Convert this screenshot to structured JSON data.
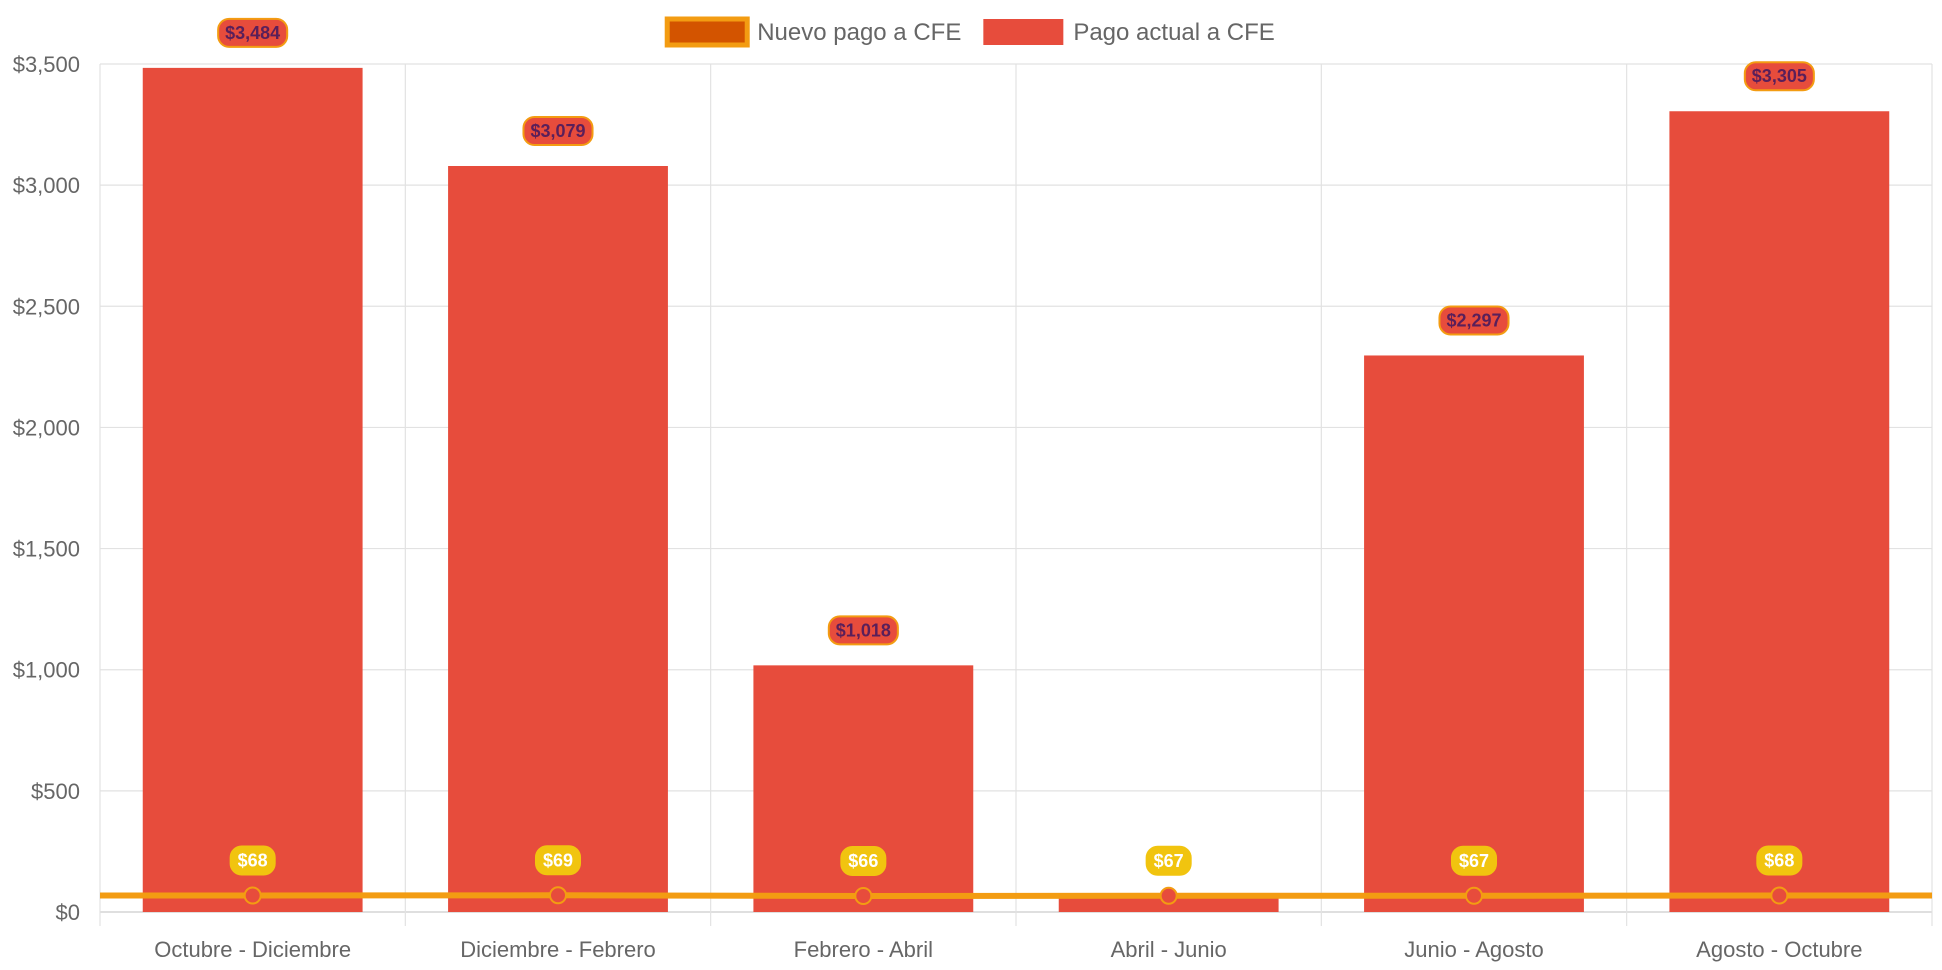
{
  "chart_data": {
    "type": "bar",
    "categories": [
      "Octubre - Diciembre",
      "Diciembre - Febrero",
      "Febrero - Abril",
      "Abril - Junio",
      "Junio - Agosto",
      "Agosto - Octubre"
    ],
    "series": [
      {
        "name": "Nuevo pago a CFE",
        "type": "line",
        "values": [
          68,
          69,
          66,
          67,
          67,
          68
        ],
        "labels": [
          "$68",
          "$69",
          "$66",
          "$67",
          "$67",
          "$68"
        ],
        "color": "#f39c12",
        "point_color": "#e74c3c",
        "legend_fill": "#d35400",
        "label_bg": "#f1c40f"
      },
      {
        "name": "Pago actual a CFE",
        "type": "bar",
        "values": [
          3484,
          3079,
          1018,
          67,
          2297,
          3305
        ],
        "labels": [
          "$3,484",
          "$3,079",
          "$1,018",
          "",
          "$2,297",
          "$3,305"
        ],
        "color": "#e74c3c",
        "label_border": "#f39c12"
      }
    ],
    "y_ticks": [
      "$0",
      "$500",
      "$1,000",
      "$1,500",
      "$2,000",
      "$2,500",
      "$3,000",
      "$3,500"
    ],
    "ylim": [
      0,
      3500
    ],
    "grid": true,
    "legend_position": "top-center",
    "title": "",
    "xlabel": "",
    "ylabel": ""
  }
}
